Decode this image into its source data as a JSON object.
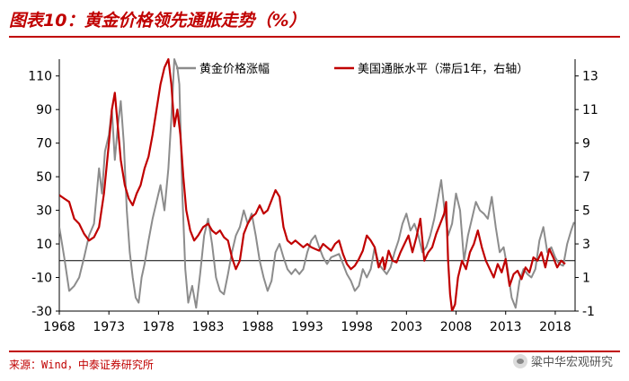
{
  "figure": {
    "title": "图表10：黄金价格领先通胀走势（%）",
    "source": "来源：Wind，中泰证券研究所",
    "watermark": "粱中华宏观研究"
  },
  "chart_data": {
    "type": "line",
    "title": "图表10：黄金价格领先通胀走势（%）",
    "xlabel": "",
    "ylabel": "",
    "xlim": [
      1968,
      2020
    ],
    "ylim_left": [
      -30,
      120
    ],
    "ylim_right": [
      -1,
      14
    ],
    "x_ticks": [
      1968,
      1973,
      1978,
      1983,
      1988,
      1993,
      1998,
      2003,
      2008,
      2013,
      2018
    ],
    "y_ticks_left": [
      -30,
      -10,
      10,
      30,
      50,
      70,
      90,
      110
    ],
    "y_ticks_right": [
      -1,
      1,
      3,
      5,
      7,
      9,
      11,
      13
    ],
    "reference_line": {
      "axis": "left",
      "value": 0
    },
    "legend_position": "top",
    "grid": false,
    "series": [
      {
        "name": "黄金价格涨幅",
        "axis": "left",
        "color": "#8c8c8c",
        "points": [
          [
            1968.0,
            20
          ],
          [
            1968.5,
            2
          ],
          [
            1969.0,
            -18
          ],
          [
            1969.5,
            -15
          ],
          [
            1970.0,
            -10
          ],
          [
            1970.5,
            2
          ],
          [
            1971.0,
            15
          ],
          [
            1971.5,
            22
          ],
          [
            1972.0,
            55
          ],
          [
            1972.3,
            40
          ],
          [
            1972.6,
            65
          ],
          [
            1973.0,
            75
          ],
          [
            1973.3,
            90
          ],
          [
            1973.6,
            60
          ],
          [
            1973.9,
            80
          ],
          [
            1974.2,
            95
          ],
          [
            1974.5,
            70
          ],
          [
            1974.8,
            30
          ],
          [
            1975.1,
            5
          ],
          [
            1975.4,
            -10
          ],
          [
            1975.7,
            -22
          ],
          [
            1976.0,
            -25
          ],
          [
            1976.3,
            -10
          ],
          [
            1976.6,
            -2
          ],
          [
            1977.0,
            12
          ],
          [
            1977.4,
            25
          ],
          [
            1977.8,
            35
          ],
          [
            1978.2,
            45
          ],
          [
            1978.6,
            30
          ],
          [
            1979.0,
            55
          ],
          [
            1979.3,
            85
          ],
          [
            1979.6,
            120
          ],
          [
            1979.9,
            115
          ],
          [
            1980.1,
            105
          ],
          [
            1980.4,
            40
          ],
          [
            1980.7,
            -5
          ],
          [
            1981.0,
            -25
          ],
          [
            1981.4,
            -15
          ],
          [
            1981.8,
            -28
          ],
          [
            1982.2,
            -8
          ],
          [
            1982.6,
            15
          ],
          [
            1983.0,
            25
          ],
          [
            1983.4,
            10
          ],
          [
            1983.8,
            -10
          ],
          [
            1984.2,
            -18
          ],
          [
            1984.6,
            -20
          ],
          [
            1985.0,
            -8
          ],
          [
            1985.4,
            5
          ],
          [
            1985.8,
            15
          ],
          [
            1986.2,
            20
          ],
          [
            1986.6,
            30
          ],
          [
            1987.0,
            22
          ],
          [
            1987.4,
            28
          ],
          [
            1987.8,
            15
          ],
          [
            1988.2,
            0
          ],
          [
            1988.6,
            -10
          ],
          [
            1989.0,
            -18
          ],
          [
            1989.4,
            -12
          ],
          [
            1989.8,
            5
          ],
          [
            1990.2,
            10
          ],
          [
            1990.6,
            2
          ],
          [
            1991.0,
            -5
          ],
          [
            1991.4,
            -8
          ],
          [
            1991.8,
            -5
          ],
          [
            1992.2,
            -8
          ],
          [
            1992.6,
            -5
          ],
          [
            1993.0,
            5
          ],
          [
            1993.4,
            12
          ],
          [
            1993.8,
            15
          ],
          [
            1994.2,
            8
          ],
          [
            1994.6,
            2
          ],
          [
            1995.0,
            -2
          ],
          [
            1995.4,
            2
          ],
          [
            1995.8,
            3
          ],
          [
            1996.2,
            4
          ],
          [
            1996.6,
            -2
          ],
          [
            1997.0,
            -8
          ],
          [
            1997.4,
            -12
          ],
          [
            1997.8,
            -18
          ],
          [
            1998.2,
            -15
          ],
          [
            1998.6,
            -5
          ],
          [
            1999.0,
            -10
          ],
          [
            1999.4,
            -5
          ],
          [
            1999.8,
            8
          ],
          [
            2000.2,
            -2
          ],
          [
            2000.6,
            -5
          ],
          [
            2001.0,
            -8
          ],
          [
            2001.4,
            -4
          ],
          [
            2001.8,
            5
          ],
          [
            2002.2,
            12
          ],
          [
            2002.6,
            22
          ],
          [
            2003.0,
            28
          ],
          [
            2003.4,
            18
          ],
          [
            2003.8,
            22
          ],
          [
            2004.2,
            15
          ],
          [
            2004.6,
            5
          ],
          [
            2005.0,
            8
          ],
          [
            2005.4,
            15
          ],
          [
            2005.8,
            25
          ],
          [
            2006.2,
            38
          ],
          [
            2006.5,
            48
          ],
          [
            2006.8,
            32
          ],
          [
            2007.2,
            15
          ],
          [
            2007.6,
            22
          ],
          [
            2008.0,
            40
          ],
          [
            2008.4,
            30
          ],
          [
            2008.8,
            0
          ],
          [
            2009.2,
            15
          ],
          [
            2009.6,
            25
          ],
          [
            2010.0,
            35
          ],
          [
            2010.4,
            30
          ],
          [
            2010.8,
            28
          ],
          [
            2011.2,
            25
          ],
          [
            2011.6,
            38
          ],
          [
            2012.0,
            20
          ],
          [
            2012.4,
            5
          ],
          [
            2012.8,
            8
          ],
          [
            2013.2,
            -5
          ],
          [
            2013.6,
            -22
          ],
          [
            2014.0,
            -28
          ],
          [
            2014.4,
            -12
          ],
          [
            2014.8,
            -5
          ],
          [
            2015.2,
            -8
          ],
          [
            2015.6,
            -10
          ],
          [
            2016.0,
            -5
          ],
          [
            2016.4,
            12
          ],
          [
            2016.8,
            20
          ],
          [
            2017.2,
            5
          ],
          [
            2017.6,
            8
          ],
          [
            2018.0,
            2
          ],
          [
            2018.4,
            -2
          ],
          [
            2018.8,
            -3
          ],
          [
            2019.2,
            10
          ],
          [
            2019.6,
            18
          ],
          [
            2019.9,
            23
          ]
        ]
      },
      {
        "name": "美国通胀水平（滞后1年，右轴）",
        "axis": "right",
        "color": "#c00000",
        "points": [
          [
            1968.0,
            5.9
          ],
          [
            1968.5,
            5.7
          ],
          [
            1969.0,
            5.5
          ],
          [
            1969.5,
            4.5
          ],
          [
            1970.0,
            4.2
          ],
          [
            1970.5,
            3.6
          ],
          [
            1971.0,
            3.2
          ],
          [
            1971.5,
            3.4
          ],
          [
            1972.0,
            4.0
          ],
          [
            1972.5,
            6.0
          ],
          [
            1973.0,
            9.0
          ],
          [
            1973.3,
            11.0
          ],
          [
            1973.6,
            12.0
          ],
          [
            1973.9,
            10.0
          ],
          [
            1974.2,
            8.0
          ],
          [
            1974.6,
            6.5
          ],
          [
            1975.0,
            5.7
          ],
          [
            1975.4,
            5.3
          ],
          [
            1975.8,
            6.0
          ],
          [
            1976.2,
            6.5
          ],
          [
            1976.6,
            7.5
          ],
          [
            1977.0,
            8.2
          ],
          [
            1977.4,
            9.5
          ],
          [
            1977.8,
            11.0
          ],
          [
            1978.2,
            12.5
          ],
          [
            1978.6,
            13.5
          ],
          [
            1979.0,
            14.0
          ],
          [
            1979.3,
            12.5
          ],
          [
            1979.6,
            10.0
          ],
          [
            1979.9,
            11.0
          ],
          [
            1980.2,
            9.5
          ],
          [
            1980.5,
            7.0
          ],
          [
            1980.8,
            5.0
          ],
          [
            1981.2,
            3.8
          ],
          [
            1981.6,
            3.2
          ],
          [
            1982.0,
            3.5
          ],
          [
            1982.5,
            4.0
          ],
          [
            1983.0,
            4.2
          ],
          [
            1983.4,
            3.8
          ],
          [
            1983.8,
            3.6
          ],
          [
            1984.2,
            3.8
          ],
          [
            1984.6,
            3.4
          ],
          [
            1985.0,
            3.2
          ],
          [
            1985.4,
            2.2
          ],
          [
            1985.8,
            1.5
          ],
          [
            1986.2,
            2.0
          ],
          [
            1986.6,
            3.6
          ],
          [
            1987.0,
            4.2
          ],
          [
            1987.4,
            4.6
          ],
          [
            1987.8,
            4.8
          ],
          [
            1988.2,
            5.3
          ],
          [
            1988.6,
            4.8
          ],
          [
            1989.0,
            5.0
          ],
          [
            1989.4,
            5.6
          ],
          [
            1989.8,
            6.2
          ],
          [
            1990.2,
            5.8
          ],
          [
            1990.6,
            4.0
          ],
          [
            1991.0,
            3.2
          ],
          [
            1991.4,
            3.0
          ],
          [
            1991.8,
            3.2
          ],
          [
            1992.2,
            3.0
          ],
          [
            1992.6,
            2.8
          ],
          [
            1993.0,
            3.0
          ],
          [
            1993.4,
            2.8
          ],
          [
            1993.8,
            2.7
          ],
          [
            1994.2,
            2.6
          ],
          [
            1994.6,
            3.0
          ],
          [
            1995.0,
            2.8
          ],
          [
            1995.4,
            2.6
          ],
          [
            1995.8,
            3.0
          ],
          [
            1996.2,
            3.2
          ],
          [
            1996.6,
            2.4
          ],
          [
            1997.0,
            1.8
          ],
          [
            1997.4,
            1.5
          ],
          [
            1997.8,
            1.7
          ],
          [
            1998.2,
            2.1
          ],
          [
            1998.6,
            2.6
          ],
          [
            1999.0,
            3.5
          ],
          [
            1999.4,
            3.2
          ],
          [
            1999.8,
            2.8
          ],
          [
            2000.2,
            1.6
          ],
          [
            2000.6,
            2.2
          ],
          [
            2000.8,
            1.5
          ],
          [
            2001.2,
            2.6
          ],
          [
            2001.6,
            2.0
          ],
          [
            2002.0,
            1.9
          ],
          [
            2002.4,
            2.5
          ],
          [
            2002.8,
            3.0
          ],
          [
            2003.2,
            3.5
          ],
          [
            2003.6,
            2.5
          ],
          [
            2004.0,
            3.4
          ],
          [
            2004.4,
            4.5
          ],
          [
            2004.8,
            2.0
          ],
          [
            2005.2,
            2.5
          ],
          [
            2005.6,
            2.8
          ],
          [
            2006.0,
            3.6
          ],
          [
            2006.4,
            4.2
          ],
          [
            2006.8,
            4.8
          ],
          [
            2007.0,
            5.5
          ],
          [
            2007.2,
            2.0
          ],
          [
            2007.4,
            0.0
          ],
          [
            2007.6,
            -1.0
          ],
          [
            2007.9,
            -0.6
          ],
          [
            2008.2,
            1.0
          ],
          [
            2008.6,
            2.0
          ],
          [
            2009.0,
            1.5
          ],
          [
            2009.4,
            2.5
          ],
          [
            2009.8,
            3.0
          ],
          [
            2010.2,
            3.8
          ],
          [
            2010.6,
            2.8
          ],
          [
            2011.0,
            2.0
          ],
          [
            2011.4,
            1.5
          ],
          [
            2011.8,
            1.0
          ],
          [
            2012.2,
            1.8
          ],
          [
            2012.6,
            1.3
          ],
          [
            2013.0,
            2.1
          ],
          [
            2013.4,
            0.5
          ],
          [
            2013.8,
            1.2
          ],
          [
            2014.2,
            1.4
          ],
          [
            2014.6,
            0.9
          ],
          [
            2015.0,
            1.6
          ],
          [
            2015.4,
            1.3
          ],
          [
            2015.8,
            2.2
          ],
          [
            2016.2,
            2.0
          ],
          [
            2016.6,
            2.5
          ],
          [
            2017.0,
            1.6
          ],
          [
            2017.4,
            2.7
          ],
          [
            2017.8,
            2.2
          ],
          [
            2018.2,
            1.6
          ],
          [
            2018.6,
            2.0
          ],
          [
            2019.0,
            1.8
          ]
        ]
      }
    ]
  }
}
